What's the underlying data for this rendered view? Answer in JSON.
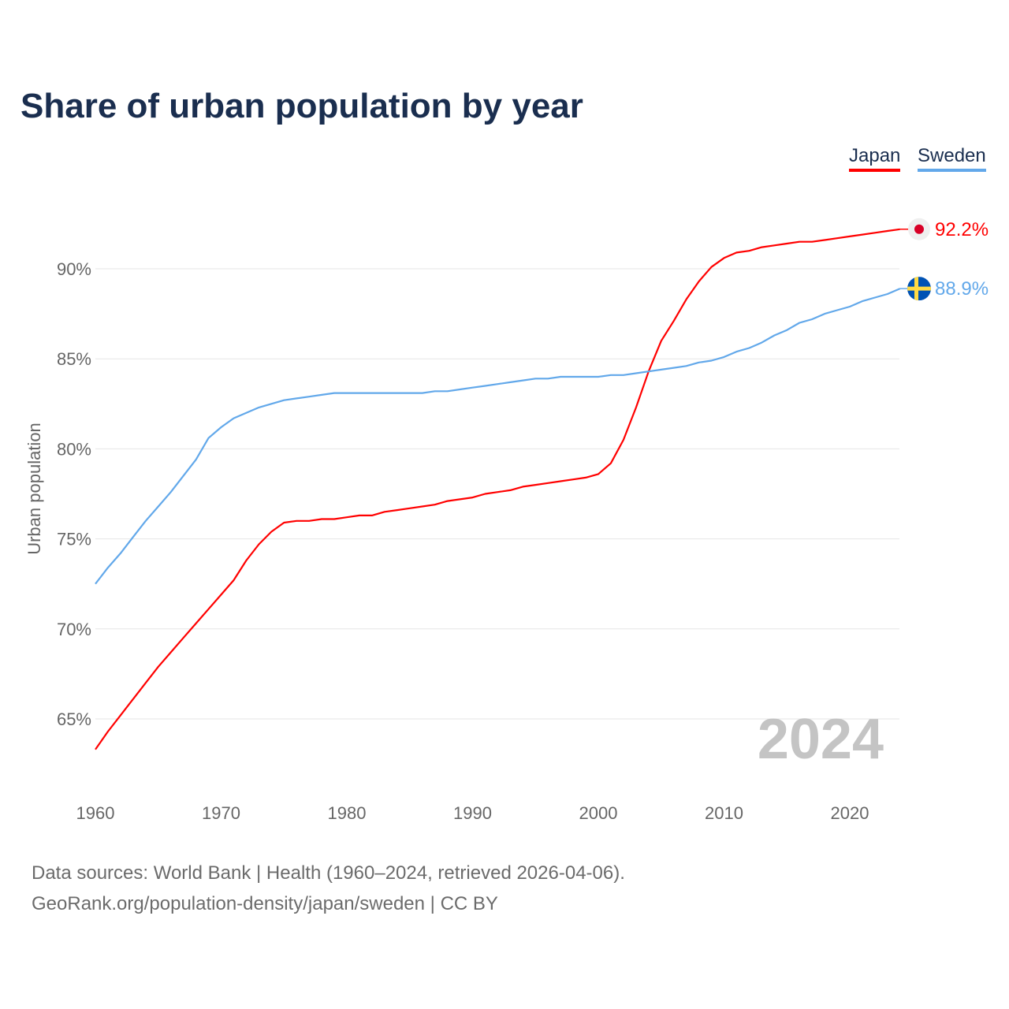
{
  "chart_data": {
    "type": "line",
    "title": "Share of urban population by year",
    "xlabel": "",
    "ylabel": "Urban population",
    "xlim": [
      1960,
      2024
    ],
    "ylim": [
      62,
      93
    ],
    "x_ticks": [
      "1960",
      "1970",
      "1980",
      "1990",
      "2000",
      "2010",
      "2020"
    ],
    "y_ticks": [
      "65%",
      "70%",
      "75%",
      "80%",
      "85%",
      "90%"
    ],
    "grid": true,
    "legend_position": "top-right",
    "year_watermark": "2024",
    "series": [
      {
        "name": "Japan",
        "color": "#ff0000",
        "end_label": "92.2%",
        "x": [
          1960,
          1961,
          1962,
          1963,
          1964,
          1965,
          1966,
          1967,
          1968,
          1969,
          1970,
          1971,
          1972,
          1973,
          1974,
          1975,
          1976,
          1977,
          1978,
          1979,
          1980,
          1981,
          1982,
          1983,
          1984,
          1985,
          1986,
          1987,
          1988,
          1989,
          1990,
          1991,
          1992,
          1993,
          1994,
          1995,
          1996,
          1997,
          1998,
          1999,
          2000,
          2001,
          2002,
          2003,
          2004,
          2005,
          2006,
          2007,
          2008,
          2009,
          2010,
          2011,
          2012,
          2013,
          2014,
          2015,
          2016,
          2017,
          2018,
          2019,
          2020,
          2021,
          2022,
          2023,
          2024
        ],
        "y": [
          63.3,
          64.3,
          65.2,
          66.1,
          67.0,
          67.9,
          68.7,
          69.5,
          70.3,
          71.1,
          71.9,
          72.7,
          73.8,
          74.7,
          75.4,
          75.9,
          76.0,
          76.0,
          76.1,
          76.1,
          76.2,
          76.3,
          76.3,
          76.5,
          76.6,
          76.7,
          76.8,
          76.9,
          77.1,
          77.2,
          77.3,
          77.5,
          77.6,
          77.7,
          77.9,
          78.0,
          78.1,
          78.2,
          78.3,
          78.4,
          78.6,
          79.2,
          80.5,
          82.3,
          84.3,
          86.0,
          87.1,
          88.3,
          89.3,
          90.1,
          90.6,
          90.9,
          91.0,
          91.2,
          91.3,
          91.4,
          91.5,
          91.5,
          91.6,
          91.7,
          91.8,
          91.9,
          92.0,
          92.1,
          92.2
        ]
      },
      {
        "name": "Sweden",
        "color": "#62a8ea",
        "end_label": "88.9%",
        "x": [
          1960,
          1961,
          1962,
          1963,
          1964,
          1965,
          1966,
          1967,
          1968,
          1969,
          1970,
          1971,
          1972,
          1973,
          1974,
          1975,
          1976,
          1977,
          1978,
          1979,
          1980,
          1981,
          1982,
          1983,
          1984,
          1985,
          1986,
          1987,
          1988,
          1989,
          1990,
          1991,
          1992,
          1993,
          1994,
          1995,
          1996,
          1997,
          1998,
          1999,
          2000,
          2001,
          2002,
          2003,
          2004,
          2005,
          2006,
          2007,
          2008,
          2009,
          2010,
          2011,
          2012,
          2013,
          2014,
          2015,
          2016,
          2017,
          2018,
          2019,
          2020,
          2021,
          2022,
          2023,
          2024
        ],
        "y": [
          72.5,
          73.4,
          74.2,
          75.1,
          76.0,
          76.8,
          77.6,
          78.5,
          79.4,
          80.6,
          81.2,
          81.7,
          82.0,
          82.3,
          82.5,
          82.7,
          82.8,
          82.9,
          83.0,
          83.1,
          83.1,
          83.1,
          83.1,
          83.1,
          83.1,
          83.1,
          83.1,
          83.2,
          83.2,
          83.3,
          83.4,
          83.5,
          83.6,
          83.7,
          83.8,
          83.9,
          83.9,
          84.0,
          84.0,
          84.0,
          84.0,
          84.1,
          84.1,
          84.2,
          84.3,
          84.4,
          84.5,
          84.6,
          84.8,
          84.9,
          85.1,
          85.4,
          85.6,
          85.9,
          86.3,
          86.6,
          87.0,
          87.2,
          87.5,
          87.7,
          87.9,
          88.2,
          88.4,
          88.6,
          88.9
        ]
      }
    ]
  },
  "footer": {
    "line1": "Data sources: World Bank | Health (1960–2024, retrieved 2026-04-06).",
    "line2": "GeoRank.org/population-density/japan/sweden | CC BY"
  }
}
